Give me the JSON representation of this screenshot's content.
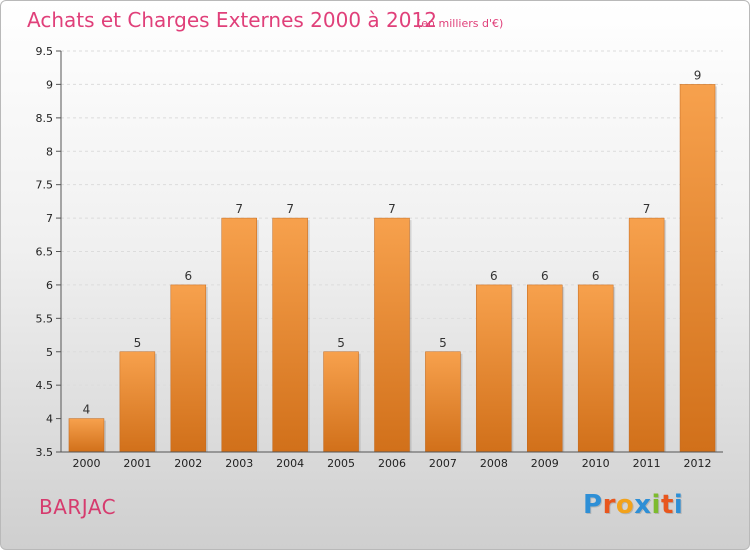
{
  "chart_data": {
    "type": "bar",
    "title": "Achats et Charges Externes 2000 à 2012",
    "subtitle": "(en milliers d'€)",
    "categories": [
      "2000",
      "2001",
      "2002",
      "2003",
      "2004",
      "2005",
      "2006",
      "2007",
      "2008",
      "2009",
      "2010",
      "2011",
      "2012"
    ],
    "values": [
      4,
      5,
      6,
      7,
      7,
      5,
      7,
      5,
      6,
      6,
      6,
      7,
      9
    ],
    "ylim": [
      3.5,
      9.5
    ],
    "yticks": [
      "3.5",
      "4",
      "4.5",
      "5",
      "5.5",
      "6",
      "6.5",
      "7",
      "7.5",
      "8",
      "8.5",
      "9",
      "9.5"
    ],
    "grid": true,
    "bar_color_top": "#f7a14d",
    "bar_color_bottom": "#d1701a"
  },
  "commune": "BARJAC",
  "logo": {
    "text": "Proxiti",
    "letters": [
      {
        "ch": "P",
        "color": "#2e8fd6"
      },
      {
        "ch": "r",
        "color": "#e8561d"
      },
      {
        "ch": "o",
        "color": "#f2a21b"
      },
      {
        "ch": "x",
        "color": "#2e8fd6"
      },
      {
        "ch": "i",
        "color": "#7dbb2e"
      },
      {
        "ch": "t",
        "color": "#e8561d"
      },
      {
        "ch": "i",
        "color": "#2e8fd6"
      }
    ]
  }
}
